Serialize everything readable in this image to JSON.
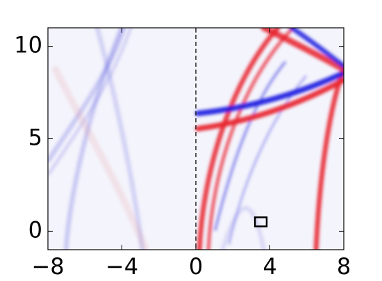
{
  "chart_data": {
    "type": "image",
    "xlim": [
      -8,
      8
    ],
    "ylim": [
      -1,
      11
    ],
    "xticks": [
      {
        "value": -8,
        "label": "−8"
      },
      {
        "value": -4,
        "label": "−4"
      },
      0,
      4,
      8
    ],
    "yticks": [
      0,
      5,
      10
    ],
    "vline": 0,
    "box": {
      "x": [
        3.2,
        3.83
      ],
      "y": [
        0.26,
        0.75
      ]
    }
  }
}
